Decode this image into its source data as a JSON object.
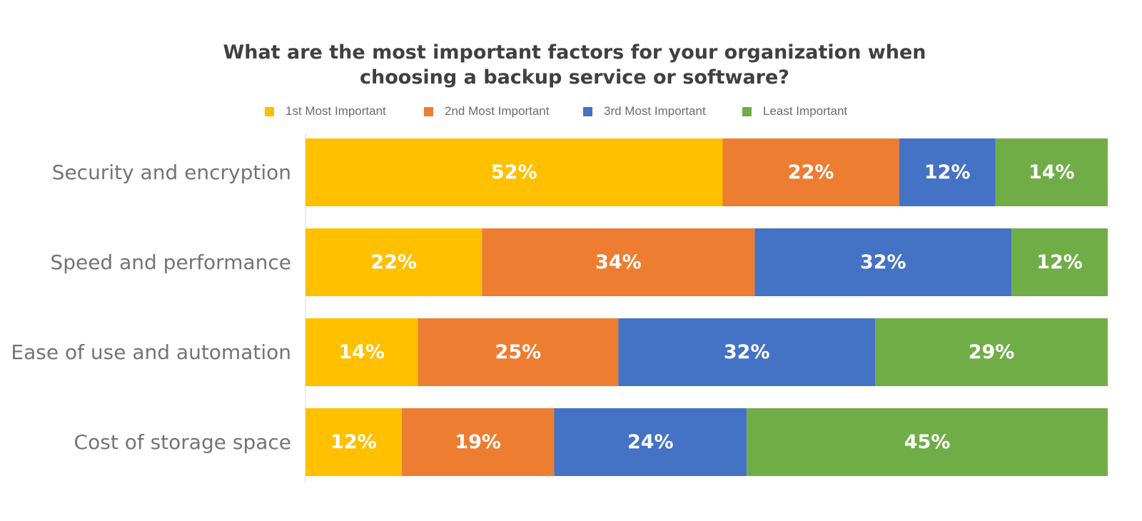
{
  "chart_data": {
    "type": "bar",
    "orientation": "horizontal",
    "stacked": true,
    "title": "What are the most important factors for your organization when choosing a backup service or software?",
    "title_lines": [
      "What are the most important factors for your organization when",
      "choosing a backup service or software?"
    ],
    "categories": [
      "Security and encryption",
      "Speed and performance",
      "Ease of use and automation",
      "Cost of storage space"
    ],
    "series": [
      {
        "name": "1st Most Important",
        "color": "#FFC000",
        "values": [
          52,
          22,
          14,
          12
        ],
        "labels": [
          "52%",
          "22%",
          "14%",
          "12%"
        ]
      },
      {
        "name": "2nd Most Important",
        "color": "#ED7D31",
        "values": [
          22,
          34,
          25,
          19
        ],
        "labels": [
          "22%",
          "34%",
          "25%",
          "19%"
        ]
      },
      {
        "name": "3rd Most Important",
        "color": "#4472C4",
        "values": [
          12,
          32,
          32,
          24
        ],
        "labels": [
          "12%",
          "32%",
          "32%",
          "24%"
        ]
      },
      {
        "name": "Least Important",
        "color": "#70AD47",
        "values": [
          14,
          12,
          29,
          45
        ],
        "labels": [
          "14%",
          "12%",
          "29%",
          "45%"
        ]
      }
    ],
    "legend_position": "top",
    "grid": false
  }
}
